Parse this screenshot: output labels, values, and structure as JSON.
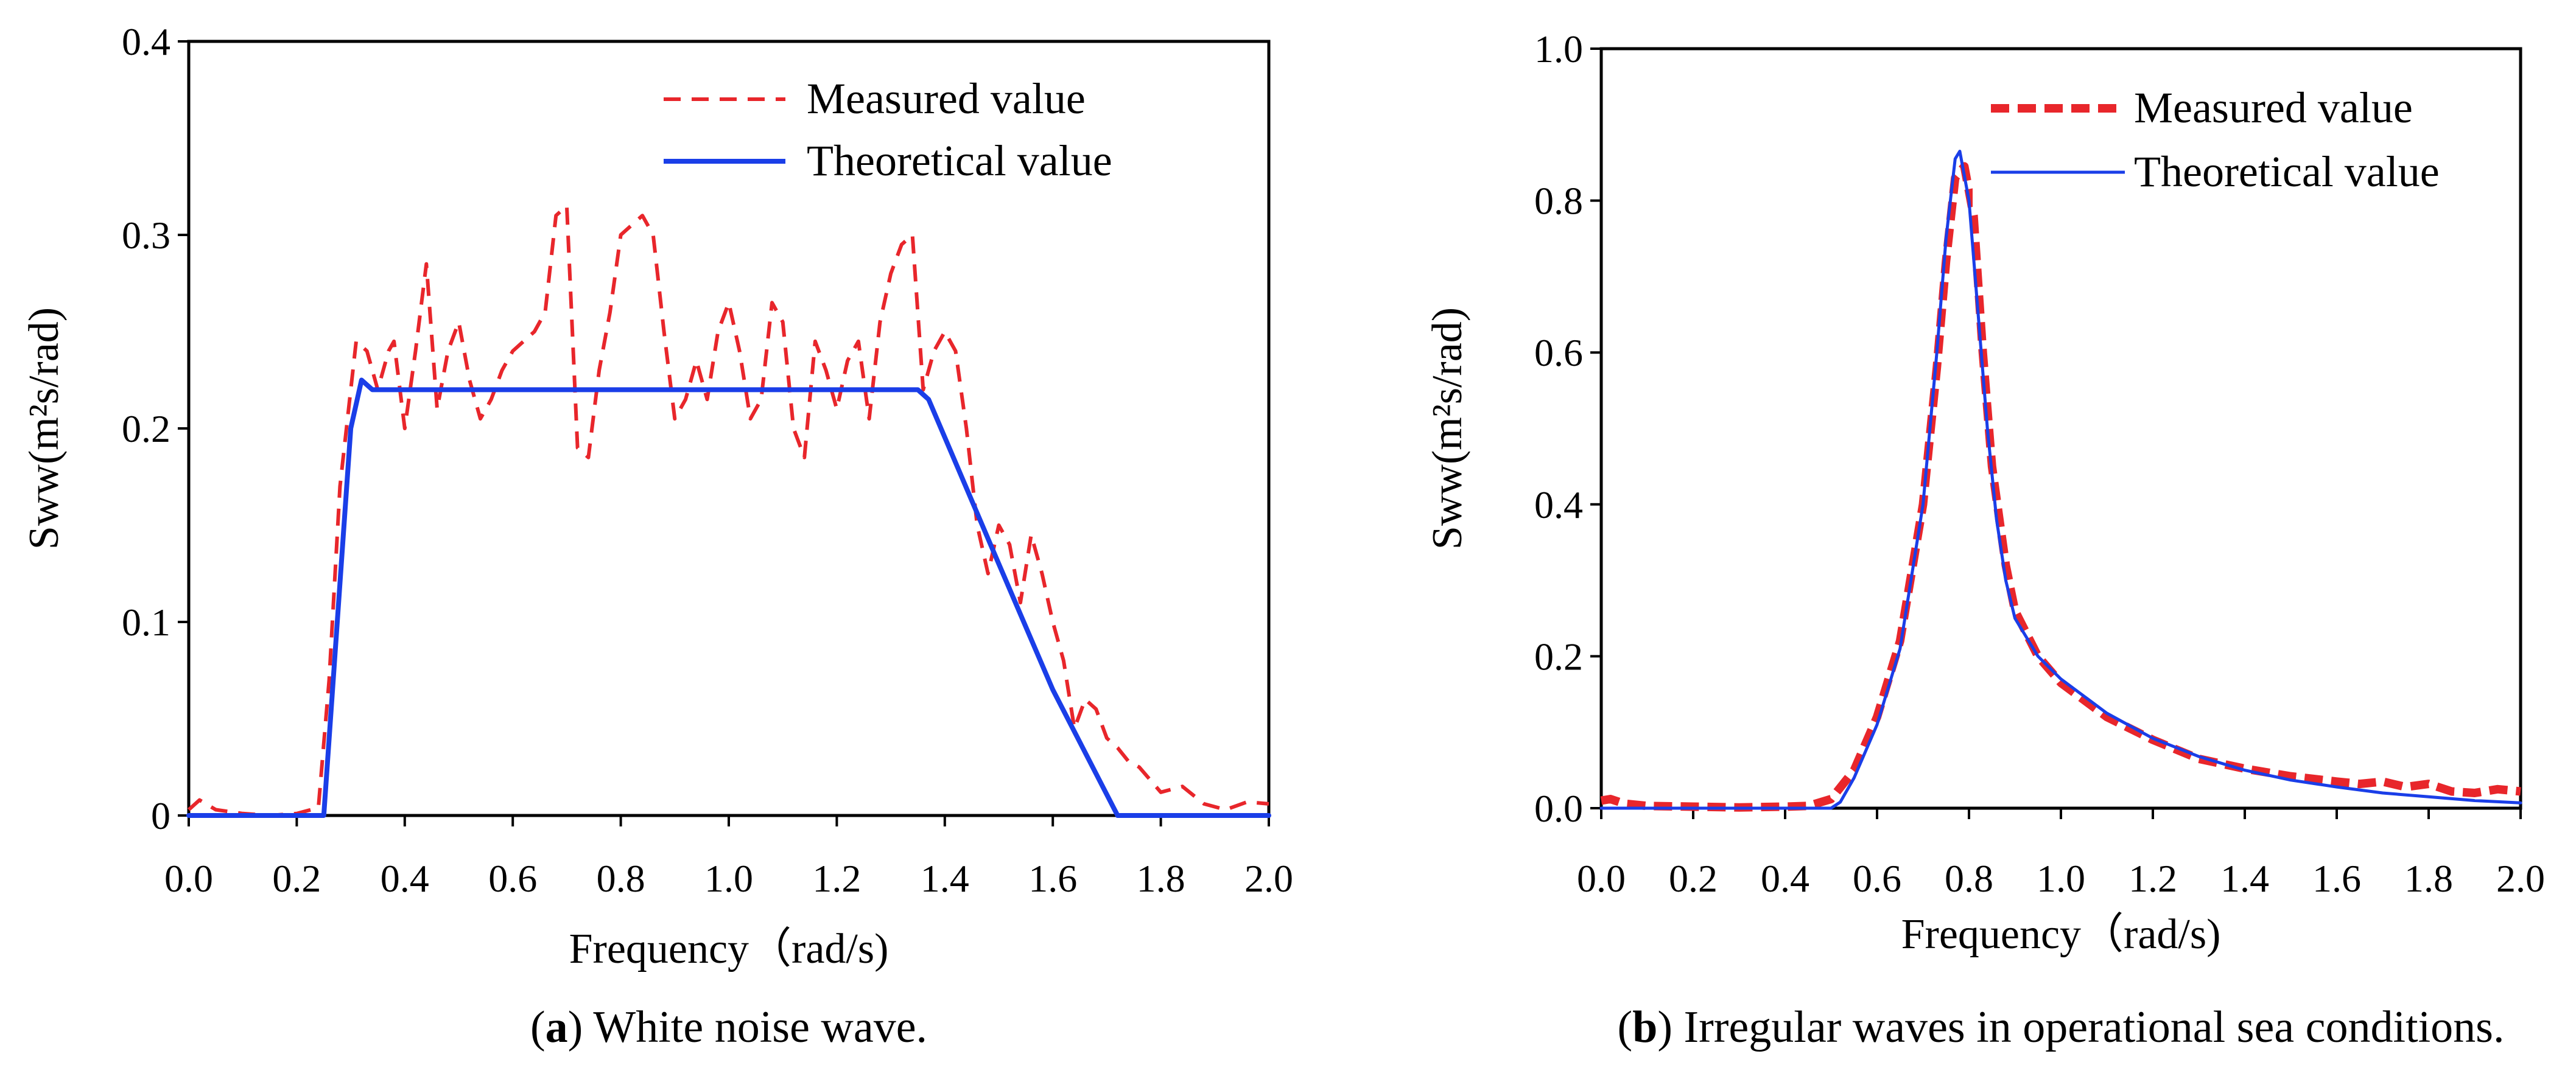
{
  "chart_data": [
    {
      "type": "line",
      "caption_letter": "a",
      "caption_text": ") White noise wave.",
      "caption_open": "(",
      "xlabel": "Frequency（rad/s)",
      "ylabel": "Sww(m²s/rad)",
      "xlim": [
        0.0,
        2.0
      ],
      "ylim": [
        0,
        0.4
      ],
      "xticks": [
        "0.0",
        "0.2",
        "0.4",
        "0.6",
        "0.8",
        "1.0",
        "1.2",
        "1.4",
        "1.6",
        "1.8",
        "2.0"
      ],
      "yticks": [
        "0",
        "0.1",
        "0.2",
        "0.3",
        "0.4"
      ],
      "legend_position": "top-right",
      "series": [
        {
          "name": "Measured value",
          "style": "dashed",
          "color": "#e8262b",
          "x": [
            0.0,
            0.02,
            0.05,
            0.1,
            0.15,
            0.2,
            0.24,
            0.26,
            0.28,
            0.3,
            0.31,
            0.33,
            0.35,
            0.37,
            0.38,
            0.4,
            0.42,
            0.44,
            0.46,
            0.48,
            0.5,
            0.52,
            0.54,
            0.56,
            0.58,
            0.6,
            0.62,
            0.64,
            0.66,
            0.68,
            0.7,
            0.72,
            0.74,
            0.76,
            0.78,
            0.8,
            0.82,
            0.84,
            0.86,
            0.88,
            0.9,
            0.92,
            0.94,
            0.96,
            0.98,
            1.0,
            1.02,
            1.04,
            1.06,
            1.08,
            1.1,
            1.12,
            1.14,
            1.16,
            1.18,
            1.2,
            1.22,
            1.24,
            1.26,
            1.28,
            1.3,
            1.32,
            1.34,
            1.36,
            1.38,
            1.4,
            1.42,
            1.44,
            1.46,
            1.48,
            1.5,
            1.52,
            1.54,
            1.56,
            1.58,
            1.6,
            1.62,
            1.64,
            1.66,
            1.68,
            1.7,
            1.72,
            1.74,
            1.76,
            1.8,
            1.84,
            1.88,
            1.92,
            1.96,
            2.0
          ],
          "values": [
            0.003,
            0.008,
            0.003,
            0.001,
            0.0,
            0.001,
            0.004,
            0.07,
            0.17,
            0.22,
            0.245,
            0.24,
            0.22,
            0.24,
            0.245,
            0.2,
            0.24,
            0.285,
            0.21,
            0.24,
            0.255,
            0.225,
            0.205,
            0.215,
            0.23,
            0.24,
            0.245,
            0.25,
            0.26,
            0.31,
            0.315,
            0.19,
            0.185,
            0.23,
            0.26,
            0.3,
            0.305,
            0.31,
            0.3,
            0.25,
            0.205,
            0.215,
            0.235,
            0.215,
            0.25,
            0.265,
            0.24,
            0.205,
            0.215,
            0.265,
            0.255,
            0.2,
            0.185,
            0.245,
            0.23,
            0.21,
            0.235,
            0.245,
            0.205,
            0.255,
            0.28,
            0.295,
            0.3,
            0.22,
            0.24,
            0.25,
            0.24,
            0.2,
            0.15,
            0.125,
            0.15,
            0.14,
            0.11,
            0.145,
            0.125,
            0.1,
            0.08,
            0.045,
            0.06,
            0.055,
            0.04,
            0.035,
            0.028,
            0.025,
            0.012,
            0.015,
            0.006,
            0.003,
            0.007,
            0.006
          ]
        },
        {
          "name": "Theoretical value",
          "style": "solid",
          "color": "#1a3ee8",
          "x": [
            0.0,
            0.25,
            0.3,
            0.32,
            0.34,
            1.35,
            1.37,
            1.5,
            1.6,
            1.72,
            2.0
          ],
          "values": [
            0.0,
            0.0,
            0.2,
            0.225,
            0.22,
            0.22,
            0.215,
            0.13,
            0.065,
            0.0,
            0.0
          ]
        }
      ]
    },
    {
      "type": "line",
      "caption_letter": "b",
      "caption_text": ") Irregular waves in operational sea conditions.",
      "caption_open": "(",
      "xlabel": "Frequency（rad/s)",
      "ylabel": "Sww(m²s/rad)",
      "xlim": [
        0.0,
        2.0
      ],
      "ylim": [
        0.0,
        1.0
      ],
      "xticks": [
        "0.0",
        "0.2",
        "0.4",
        "0.6",
        "0.8",
        "1.0",
        "1.2",
        "1.4",
        "1.6",
        "1.8",
        "2.0"
      ],
      "yticks": [
        "0.0",
        "0.2",
        "0.4",
        "0.6",
        "0.8",
        "1.0"
      ],
      "legend_position": "top-right",
      "series": [
        {
          "name": "Measured value",
          "style": "thick-dashed",
          "color": "#e8262b",
          "x": [
            0.0,
            0.02,
            0.05,
            0.1,
            0.2,
            0.3,
            0.4,
            0.45,
            0.5,
            0.55,
            0.6,
            0.65,
            0.7,
            0.73,
            0.75,
            0.77,
            0.79,
            0.81,
            0.83,
            0.85,
            0.88,
            0.9,
            0.95,
            1.0,
            1.1,
            1.2,
            1.3,
            1.4,
            1.5,
            1.6,
            1.65,
            1.7,
            1.75,
            1.8,
            1.85,
            1.9,
            1.95,
            2.0
          ],
          "values": [
            0.01,
            0.012,
            0.006,
            0.003,
            0.002,
            0.001,
            0.002,
            0.003,
            0.012,
            0.05,
            0.12,
            0.22,
            0.4,
            0.58,
            0.72,
            0.83,
            0.845,
            0.78,
            0.6,
            0.45,
            0.32,
            0.26,
            0.2,
            0.165,
            0.12,
            0.09,
            0.065,
            0.052,
            0.042,
            0.035,
            0.032,
            0.035,
            0.028,
            0.032,
            0.022,
            0.02,
            0.025,
            0.022
          ]
        },
        {
          "name": "Theoretical value",
          "style": "solid",
          "color": "#1a3ee8",
          "x": [
            0.0,
            0.3,
            0.5,
            0.52,
            0.55,
            0.6,
            0.65,
            0.7,
            0.73,
            0.75,
            0.77,
            0.78,
            0.8,
            0.82,
            0.84,
            0.86,
            0.88,
            0.9,
            0.95,
            1.0,
            1.1,
            1.2,
            1.3,
            1.4,
            1.5,
            1.6,
            1.7,
            1.8,
            1.9,
            2.0
          ],
          "values": [
            0.0,
            0.0,
            0.0,
            0.008,
            0.04,
            0.11,
            0.21,
            0.4,
            0.6,
            0.75,
            0.855,
            0.865,
            0.8,
            0.65,
            0.5,
            0.38,
            0.3,
            0.25,
            0.2,
            0.17,
            0.125,
            0.092,
            0.068,
            0.05,
            0.037,
            0.028,
            0.02,
            0.015,
            0.01,
            0.007
          ]
        }
      ]
    }
  ]
}
